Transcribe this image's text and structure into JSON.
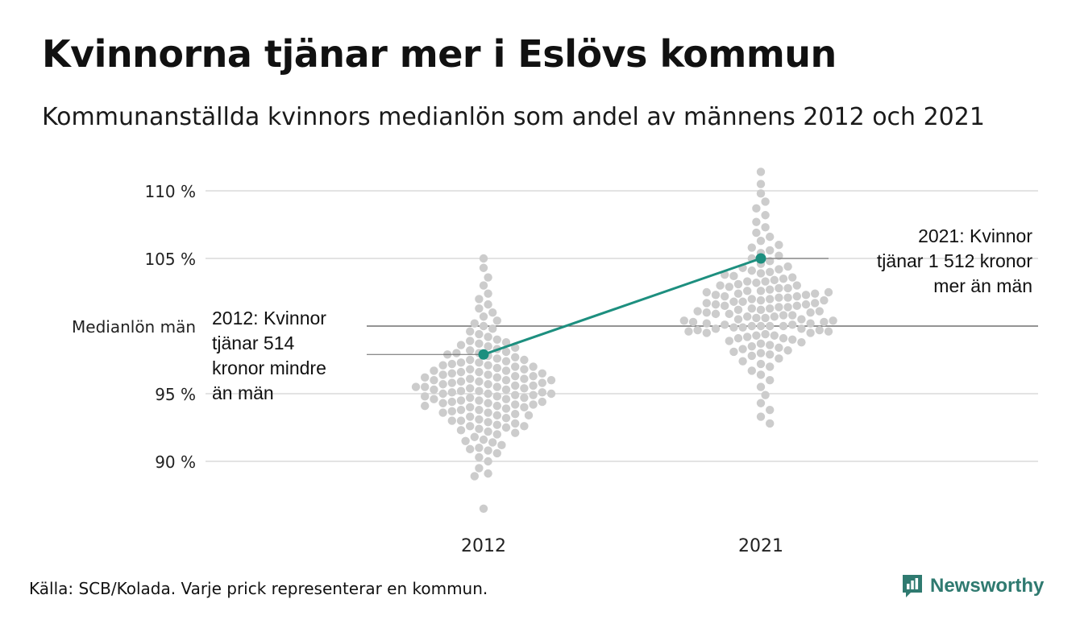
{
  "title": "Kvinnorna tjänar mer i Eslövs kommun",
  "subtitle": "Kommunanställda kvinnors medianlön som andel av männens 2012 och 2021",
  "source": "Källa: SCB/Kolada. Varje prick representerar en kommun.",
  "brand": {
    "name": "Newsworthy",
    "icon": "bar-chart-speech-bubble-icon",
    "color": "#2f7a70"
  },
  "colors": {
    "dots": "#cccccc",
    "highlight": "#1d8f7f",
    "grid": "#e3e3e3",
    "reference": "#555555"
  },
  "chart_data": {
    "type": "scatter",
    "subtype": "beeswarm",
    "categories": [
      "2012",
      "2021"
    ],
    "y_unit": "%",
    "ylim": [
      86,
      112
    ],
    "y_ticks": [
      {
        "value": 90,
        "label": "90 %"
      },
      {
        "value": 95,
        "label": "95 %"
      },
      {
        "value": 105,
        "label": "105 %"
      },
      {
        "value": 110,
        "label": "110 %"
      }
    ],
    "reference_line": {
      "value": 100,
      "label": "Medianlön män"
    },
    "grid": true,
    "highlight": {
      "series": [
        {
          "x": "2012",
          "y": 97.9
        },
        {
          "x": "2021",
          "y": 105.0
        }
      ],
      "annotations": [
        {
          "x": "2012",
          "lines": [
            "2012: Kvinnor",
            "tjänar 514",
            "kronor mindre",
            "än män"
          ]
        },
        {
          "x": "2021",
          "lines": [
            "2021: Kvinnor",
            "tjänar 1 512 kronor",
            "mer än män"
          ]
        }
      ]
    },
    "distributions": [
      {
        "category": "2012",
        "values": [
          86.5,
          88.9,
          89.1,
          89.5,
          90.0,
          90.3,
          90.6,
          90.8,
          90.9,
          91.0,
          91.2,
          91.4,
          91.5,
          91.6,
          91.8,
          92.0,
          92.1,
          92.2,
          92.3,
          92.4,
          92.5,
          92.6,
          92.6,
          92.7,
          92.8,
          92.9,
          93.0,
          93.0,
          93.1,
          93.2,
          93.3,
          93.4,
          93.4,
          93.5,
          93.6,
          93.6,
          93.7,
          93.8,
          93.8,
          93.9,
          94.0,
          94.0,
          94.1,
          94.1,
          94.2,
          94.2,
          94.3,
          94.3,
          94.4,
          94.4,
          94.5,
          94.5,
          94.6,
          94.6,
          94.7,
          94.7,
          94.8,
          94.8,
          94.9,
          94.9,
          95.0,
          95.0,
          95.0,
          95.1,
          95.1,
          95.2,
          95.2,
          95.3,
          95.3,
          95.4,
          95.4,
          95.5,
          95.5,
          95.5,
          95.6,
          95.6,
          95.7,
          95.7,
          95.8,
          95.8,
          95.9,
          95.9,
          96.0,
          96.0,
          96.0,
          96.1,
          96.1,
          96.2,
          96.2,
          96.3,
          96.3,
          96.4,
          96.4,
          96.5,
          96.5,
          96.6,
          96.6,
          96.7,
          96.7,
          96.8,
          96.8,
          96.9,
          97.0,
          97.0,
          97.1,
          97.1,
          97.2,
          97.3,
          97.3,
          97.4,
          97.5,
          97.5,
          97.6,
          97.7,
          97.8,
          97.9,
          98.0,
          98.0,
          98.1,
          98.2,
          98.3,
          98.4,
          98.5,
          98.6,
          98.7,
          98.8,
          98.9,
          99.0,
          99.2,
          99.4,
          99.6,
          99.8,
          100.0,
          100.2,
          100.4,
          100.7,
          101.0,
          101.3,
          101.6,
          102.0,
          102.4,
          103.0,
          103.6,
          104.3,
          105.0
        ]
      },
      {
        "category": "2021",
        "values": [
          92.8,
          93.3,
          93.8,
          94.3,
          94.9,
          95.5,
          96.0,
          96.4,
          96.7,
          97.0,
          97.2,
          97.4,
          97.6,
          97.8,
          97.9,
          98.0,
          98.1,
          98.2,
          98.3,
          98.4,
          98.5,
          98.6,
          98.7,
          98.8,
          98.9,
          99.0,
          99.1,
          99.1,
          99.2,
          99.3,
          99.3,
          99.4,
          99.5,
          99.5,
          99.6,
          99.6,
          99.7,
          99.7,
          99.8,
          99.8,
          99.9,
          99.9,
          100.0,
          100.0,
          100.0,
          100.0,
          100.1,
          100.1,
          100.2,
          100.2,
          100.3,
          100.3,
          100.4,
          100.4,
          100.5,
          100.5,
          100.6,
          100.6,
          100.7,
          100.7,
          100.8,
          100.8,
          100.9,
          100.9,
          101.0,
          101.0,
          101.1,
          101.1,
          101.2,
          101.2,
          101.3,
          101.3,
          101.4,
          101.4,
          101.5,
          101.5,
          101.6,
          101.6,
          101.7,
          101.7,
          101.8,
          101.8,
          101.9,
          101.9,
          102.0,
          102.0,
          102.1,
          102.1,
          102.2,
          102.2,
          102.3,
          102.3,
          102.4,
          102.4,
          102.5,
          102.5,
          102.6,
          102.6,
          102.7,
          102.8,
          102.8,
          102.9,
          103.0,
          103.0,
          103.1,
          103.2,
          103.3,
          103.3,
          103.4,
          103.5,
          103.6,
          103.7,
          103.8,
          103.9,
          104.0,
          104.1,
          104.2,
          104.3,
          104.4,
          104.6,
          104.8,
          105.0,
          105.2,
          105.4,
          105.6,
          105.8,
          106.0,
          106.3,
          106.6,
          106.9,
          107.3,
          107.7,
          108.2,
          108.7,
          109.2,
          109.8,
          110.5,
          111.4
        ]
      }
    ]
  }
}
